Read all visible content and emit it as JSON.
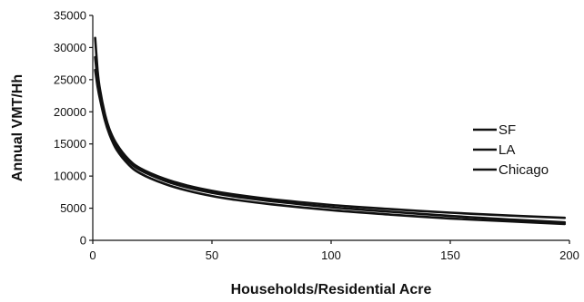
{
  "chart_data": {
    "type": "line",
    "title": "",
    "xlabel": "Households/Residential Acre",
    "ylabel": "Annual VMT/Hh",
    "xlim": [
      0,
      200
    ],
    "ylim": [
      0,
      35000
    ],
    "x_ticks": [
      0,
      50,
      100,
      150,
      200
    ],
    "y_ticks": [
      0,
      5000,
      10000,
      15000,
      20000,
      25000,
      30000,
      35000
    ],
    "x_tick_labels": [
      "0",
      "50",
      "100",
      "150",
      "200"
    ],
    "y_tick_labels": [
      "0",
      "5000",
      "10000",
      "15000",
      "20000",
      "25000",
      "30000",
      "35000"
    ],
    "grid": false,
    "legend_position": "right",
    "x": [
      1,
      2,
      3,
      5,
      7,
      10,
      15,
      20,
      30,
      40,
      50,
      60,
      75,
      100,
      125,
      150,
      175,
      198
    ],
    "series": [
      {
        "name": "SF",
        "color": "#111111",
        "values": [
          31500,
          26500,
          23500,
          19800,
          17300,
          15000,
          12600,
          11200,
          9600,
          8500,
          7700,
          7100,
          6400,
          5500,
          4850,
          4300,
          3850,
          3500
        ]
      },
      {
        "name": "LA",
        "color": "#111111",
        "values": [
          28500,
          25000,
          22700,
          19300,
          17000,
          14600,
          12300,
          10900,
          9300,
          8200,
          7400,
          6800,
          6100,
          5150,
          4450,
          3800,
          3250,
          2800
        ]
      },
      {
        "name": "Chicago",
        "color": "#111111",
        "values": [
          26500,
          24000,
          22000,
          18800,
          16500,
          14100,
          11800,
          10400,
          8800,
          7700,
          6900,
          6300,
          5600,
          4700,
          4000,
          3400,
          2950,
          2550
        ]
      }
    ]
  }
}
